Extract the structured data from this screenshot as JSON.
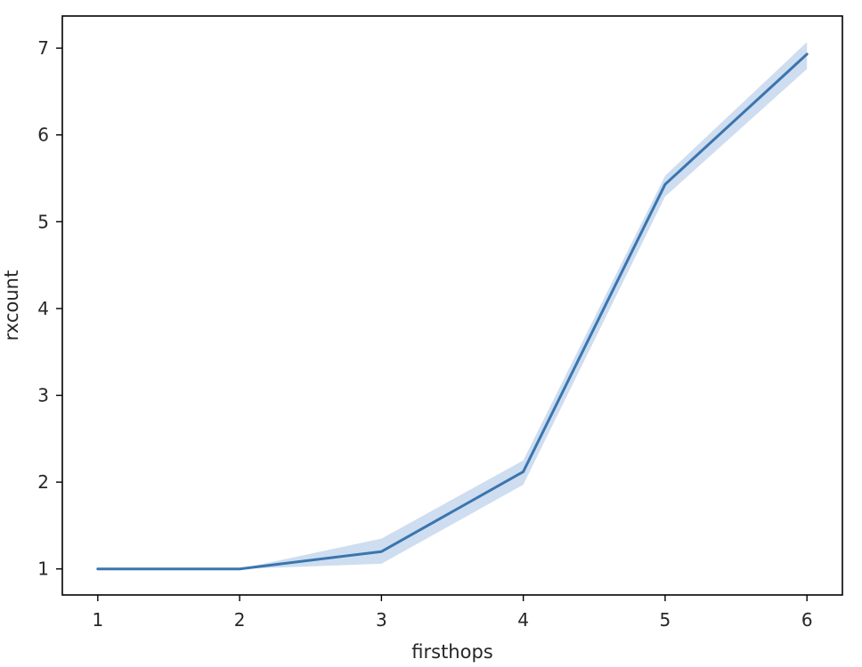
{
  "chart_data": {
    "type": "line",
    "title": "",
    "xlabel": "firsthops",
    "ylabel": "rxcount",
    "x": [
      1,
      2,
      3,
      4,
      5,
      6
    ],
    "xticks": [
      1,
      2,
      3,
      4,
      5,
      6
    ],
    "yticks": [
      1,
      2,
      3,
      4,
      5,
      6,
      7
    ],
    "xlim": [
      0.75,
      6.25
    ],
    "ylim": [
      0.7,
      7.37
    ],
    "grid": false,
    "series": [
      {
        "values": [
          1.0,
          1.0,
          1.2,
          2.12,
          5.43,
          6.93
        ],
        "ci_lower": [
          1.0,
          1.0,
          1.06,
          1.97,
          5.29,
          6.76
        ],
        "ci_upper": [
          1.0,
          1.0,
          1.35,
          2.25,
          5.53,
          7.07
        ],
        "color": "#3a75ae",
        "band_color": "#aec6e6"
      }
    ]
  }
}
